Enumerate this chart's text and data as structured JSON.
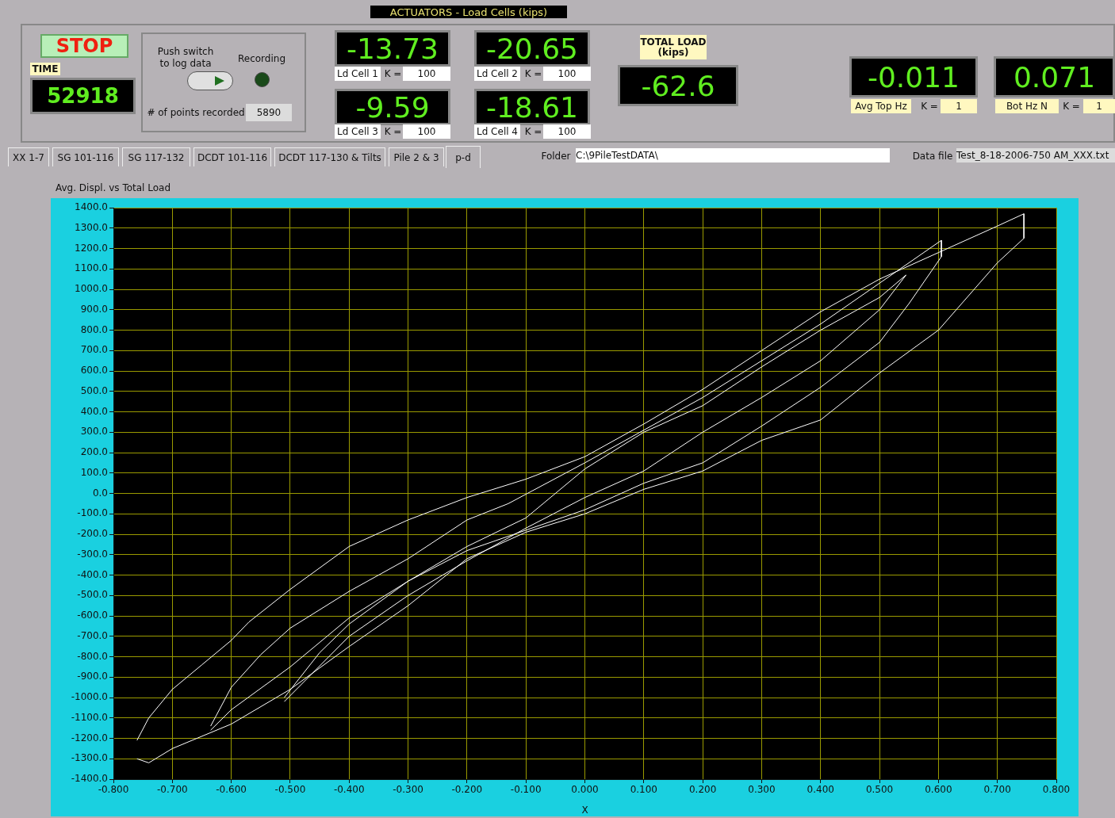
{
  "chart_data": [
    {
      "type": "other",
      "annotations": [
        "ACTUATORS - Load Cells (kips)",
        "STOP",
        "TIME",
        "52918",
        "Push switch to log data",
        "Recording",
        "# of points recorded",
        "5890",
        "-13.73",
        "Ld Cell 1",
        "K =",
        "100",
        "-20.65",
        "Ld Cell 2",
        "K =",
        "100",
        "-9.59",
        "Ld Cell 3",
        "K =",
        "100",
        "-18.61",
        "Ld Cell 4",
        "K =",
        "100",
        "TOTAL LOAD (kips)",
        "-62.6",
        "-0.011",
        "Avg Top Hz",
        "K =",
        "1",
        "0.071",
        "Bot Hz N",
        "K =",
        "1",
        "XX 1-7",
        "SG 101-116",
        "SG 117-132",
        "DCDT 101-116",
        "DCDT 117-130 & Tilts",
        "Pile 2 & 3",
        "p-d",
        "Folder",
        "C:\\9PileTestDATA\\",
        "Data file",
        "Test_8-18-2006-750 AM_XXX.txt"
      ]
    },
    {
      "type": "line",
      "title": "Avg. Displ.  vs Total Load",
      "xlabel": "X",
      "grid": true,
      "legend": false,
      "marker": "none",
      "xlim": [
        -0.8,
        0.8
      ],
      "xticks": [
        {
          "value": -0.8,
          "label": "-0.800"
        },
        {
          "value": -0.7,
          "label": "-0.700"
        },
        {
          "value": -0.6,
          "label": "-0.600"
        },
        {
          "value": -0.5,
          "label": "-0.500"
        },
        {
          "value": -0.4,
          "label": "-0.400"
        },
        {
          "value": -0.3,
          "label": "-0.300"
        },
        {
          "value": -0.2,
          "label": "-0.200"
        },
        {
          "value": -0.1,
          "label": "-0.100"
        },
        {
          "value": 0,
          "label": "0.000"
        },
        {
          "value": 0.1,
          "label": "0.100"
        },
        {
          "value": 0.2,
          "label": "0.200"
        },
        {
          "value": 0.3,
          "label": "0.300"
        },
        {
          "value": 0.4,
          "label": "0.400"
        },
        {
          "value": 0.5,
          "label": "0.500"
        },
        {
          "value": 0.6,
          "label": "0.600"
        },
        {
          "value": 0.7,
          "label": "0.700"
        },
        {
          "value": 0.8,
          "label": "0.800"
        }
      ],
      "ylim": [
        -1400,
        1400
      ],
      "yticks": [
        {
          "value": -1400,
          "label": "-1400.0"
        },
        {
          "value": -1300,
          "label": "-1300.0"
        },
        {
          "value": -1200,
          "label": "-1200.0"
        },
        {
          "value": -1100,
          "label": "-1100.0"
        },
        {
          "value": -1000,
          "label": "-1000.0"
        },
        {
          "value": -900,
          "label": "-900.0"
        },
        {
          "value": -800,
          "label": "-800.0"
        },
        {
          "value": -700,
          "label": "-700.0"
        },
        {
          "value": -600,
          "label": "-600.0"
        },
        {
          "value": -500,
          "label": "-500.0"
        },
        {
          "value": -400,
          "label": "-400.0"
        },
        {
          "value": -300,
          "label": "-300.0"
        },
        {
          "value": -200,
          "label": "-200.0"
        },
        {
          "value": -100,
          "label": "-100.0"
        },
        {
          "value": 0,
          "label": "0.0"
        },
        {
          "value": 100,
          "label": "100.0"
        },
        {
          "value": 200,
          "label": "200.0"
        },
        {
          "value": 300,
          "label": "300.0"
        },
        {
          "value": 400,
          "label": "400.0"
        },
        {
          "value": 500,
          "label": "500.0"
        },
        {
          "value": 600,
          "label": "600.0"
        },
        {
          "value": 700,
          "label": "700.0"
        },
        {
          "value": 800,
          "label": "800.0"
        },
        {
          "value": 900,
          "label": "900.0"
        },
        {
          "value": 1000,
          "label": "1000.0"
        },
        {
          "value": 1100,
          "label": "1100.0"
        },
        {
          "value": 1200,
          "label": "1200.0"
        },
        {
          "value": 1300,
          "label": "1300.0"
        },
        {
          "value": 1400,
          "label": "1400.0"
        }
      ],
      "series": [
        {
          "color": "#ffffff",
          "x": [
            -0.76,
            -0.74,
            -0.7,
            -0.65,
            -0.6,
            -0.57,
            -0.5,
            -0.4,
            -0.3,
            -0.2,
            -0.1,
            0,
            0.1,
            0.2,
            0.3,
            0.4,
            0.5,
            0.6,
            0.7,
            0.745,
            0.745,
            0.7,
            0.6,
            0.5,
            0.4,
            0.3,
            0.2,
            0.1,
            0,
            -0.1,
            -0.2,
            -0.3,
            -0.4,
            -0.5,
            -0.6,
            -0.7,
            -0.74,
            -0.76
          ],
          "values": [
            -1210,
            -1100,
            -960,
            -840,
            -720,
            -630,
            -470,
            -260,
            -130,
            -20,
            70,
            180,
            340,
            510,
            700,
            890,
            1050,
            1180,
            1310,
            1370,
            1250,
            1130,
            800,
            590,
            360,
            260,
            110,
            20,
            -100,
            -190,
            -320,
            -550,
            -750,
            -960,
            -1130,
            -1250,
            -1320,
            -1300
          ]
        },
        {
          "color": "#ffffff",
          "x": [
            -0.635,
            -0.6,
            -0.55,
            -0.5,
            -0.4,
            -0.3,
            -0.2,
            -0.13,
            0,
            0.2,
            0.4,
            0.5,
            0.605,
            0.605,
            0.55,
            0.5,
            0.4,
            0.3,
            0.2,
            0.1,
            0,
            -0.2,
            -0.3,
            -0.4,
            -0.5,
            -0.6,
            -0.635
          ],
          "values": [
            -1140,
            -950,
            -790,
            -660,
            -480,
            -320,
            -130,
            -50,
            150,
            470,
            830,
            1030,
            1240,
            1160,
            930,
            740,
            520,
            330,
            150,
            50,
            -80,
            -280,
            -430,
            -610,
            -850,
            -1060,
            -1160
          ]
        },
        {
          "color": "#ffffff",
          "x": [
            -0.51,
            -0.45,
            -0.4,
            -0.3,
            -0.2,
            -0.1,
            0,
            0.1,
            0.2,
            0.3,
            0.4,
            0.5,
            0.545,
            0.5,
            0.4,
            0.3,
            0.2,
            0.1,
            0,
            -0.1,
            -0.2,
            -0.3,
            -0.4,
            -0.51
          ],
          "values": [
            -1000,
            -780,
            -640,
            -430,
            -260,
            -120,
            120,
            300,
            430,
            620,
            800,
            960,
            1070,
            900,
            650,
            470,
            300,
            110,
            -20,
            -170,
            -330,
            -500,
            -700,
            -1020
          ]
        }
      ]
    }
  ]
}
